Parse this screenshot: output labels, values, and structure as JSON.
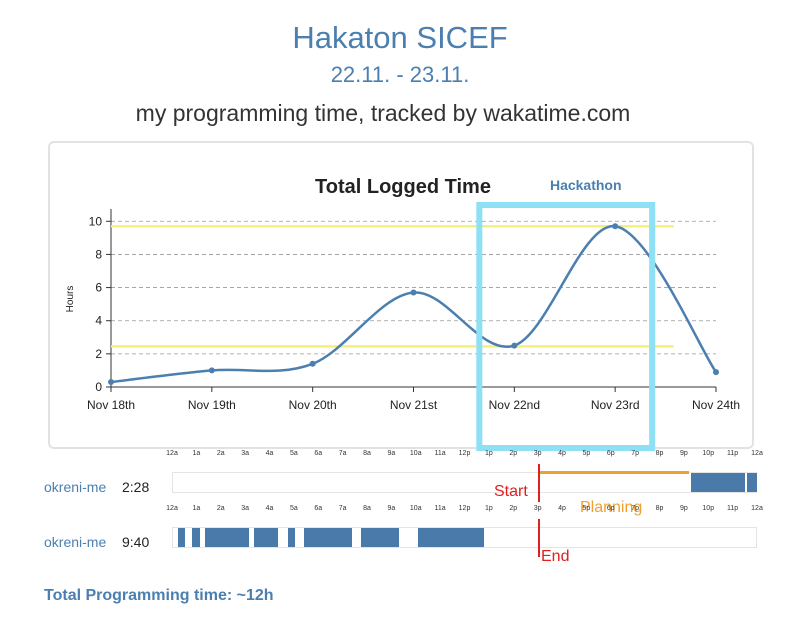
{
  "header": {
    "title": "Hakaton SICEF",
    "dates": "22.11. - 23.11.",
    "subtitle": "my programming time, tracked by wakatime.com"
  },
  "chart_data": {
    "type": "line",
    "title": "Total Logged Time",
    "ylabel": "Hours",
    "xlabel": "",
    "categories": [
      "Nov 18th",
      "Nov 19th",
      "Nov 20th",
      "Nov 21st",
      "Nov 22nd",
      "Nov 23rd",
      "Nov 24th"
    ],
    "series": [
      {
        "values": [
          0.3,
          1.0,
          1.4,
          5.7,
          2.5,
          9.7,
          0.9
        ],
        "color": "#4a7fb0"
      }
    ],
    "ylim": [
      0,
      10.5
    ],
    "yticks": [
      0,
      2,
      4,
      6,
      8,
      10
    ],
    "grid": true,
    "reference_lines": [
      9.7,
      2.45
    ],
    "reference_color": "#f5f07a",
    "highlight": {
      "label": "Hackathon",
      "from_category": "Nov 22nd",
      "to_category": "Nov 23rd",
      "color": "#8ee0f5",
      "label_color": "#4a7fb0"
    }
  },
  "timelines": {
    "hour_labels": [
      "12a",
      "1a",
      "2a",
      "3a",
      "4a",
      "5a",
      "6a",
      "7a",
      "8a",
      "9a",
      "10a",
      "11a",
      "12p",
      "1p",
      "2p",
      "3p",
      "4p",
      "5p",
      "6p",
      "7p",
      "8p",
      "9p",
      "10p",
      "11p",
      "12a"
    ],
    "rows": [
      {
        "project": "okreni-me",
        "duration": "2:28",
        "blocks": [
          [
            21.3,
            23.5
          ],
          [
            23.6,
            24.0
          ]
        ],
        "marker": {
          "label": "Start",
          "hour": 15.0
        },
        "planning": {
          "label": "Planning",
          "from": 15.0,
          "to": 21.2
        }
      },
      {
        "project": "okreni-me",
        "duration": "9:40",
        "blocks": [
          [
            0.25,
            0.55
          ],
          [
            0.8,
            1.15
          ],
          [
            1.35,
            3.15
          ],
          [
            3.35,
            4.35
          ],
          [
            4.75,
            5.05
          ],
          [
            5.4,
            7.4
          ],
          [
            7.75,
            9.3
          ],
          [
            10.1,
            12.8
          ]
        ],
        "marker": {
          "label": "End",
          "hour": 15.0
        }
      }
    ]
  },
  "footer": {
    "total": "Total Programming time: ~12h"
  }
}
